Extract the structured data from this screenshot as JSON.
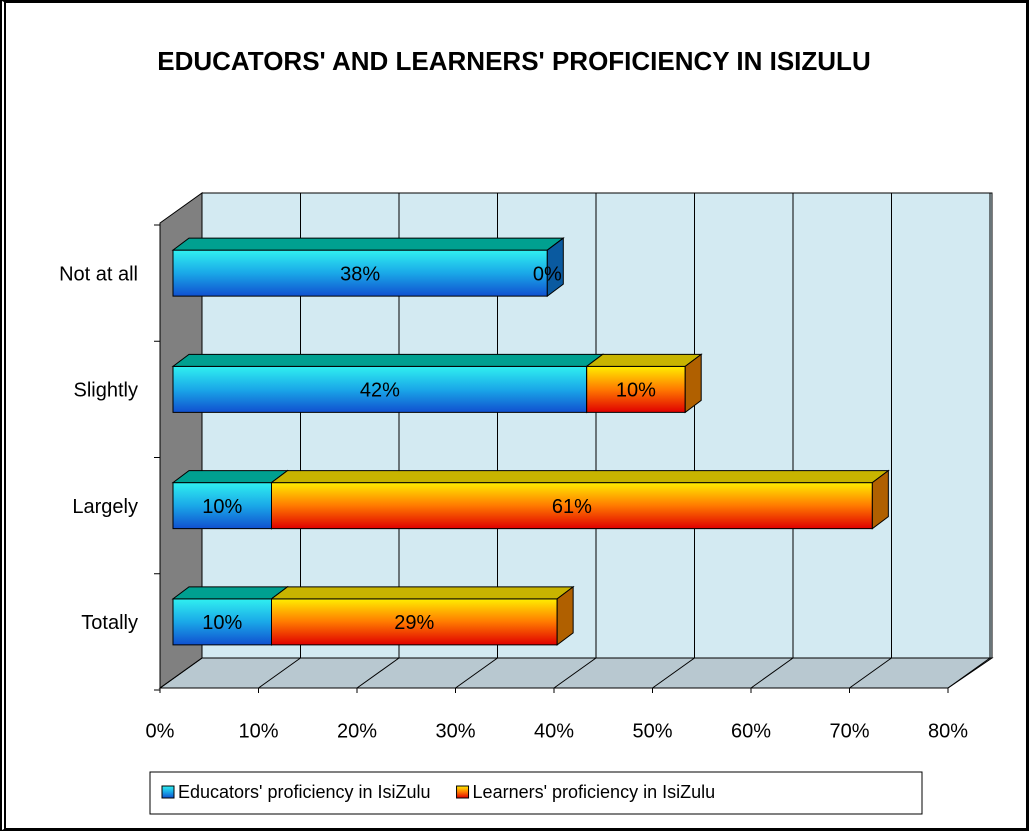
{
  "chart_data": {
    "type": "bar3d_stacked_horizontal",
    "title": "EDUCATORS' AND LEARNERS' PROFICIENCY IN ISIZULU",
    "categories": [
      "Not at all",
      "Slightly",
      "Largely",
      "Totally"
    ],
    "series": [
      {
        "name": "Educators' proficiency in IsiZulu",
        "color": "#1aa8e8",
        "values": [
          38,
          42,
          10,
          10
        ],
        "value_labels": [
          "38%",
          "42%",
          "10%",
          "10%"
        ]
      },
      {
        "name": "Learners' proficiency in IsiZulu",
        "color": "#ff7a00",
        "values": [
          0,
          10,
          61,
          29
        ],
        "value_labels": [
          "0%",
          "10%",
          "61%",
          "29%"
        ]
      }
    ],
    "xlim": [
      0,
      80
    ],
    "xticks": [
      {
        "value": 0,
        "label": "0%"
      },
      {
        "value": 10,
        "label": "10%"
      },
      {
        "value": 20,
        "label": "20%"
      },
      {
        "value": 30,
        "label": "30%"
      },
      {
        "value": 40,
        "label": "40%"
      },
      {
        "value": 50,
        "label": "50%"
      },
      {
        "value": 60,
        "label": "60%"
      },
      {
        "value": 70,
        "label": "70%"
      },
      {
        "value": 80,
        "label": "80%"
      }
    ],
    "grid": true,
    "legend": "bottom"
  }
}
